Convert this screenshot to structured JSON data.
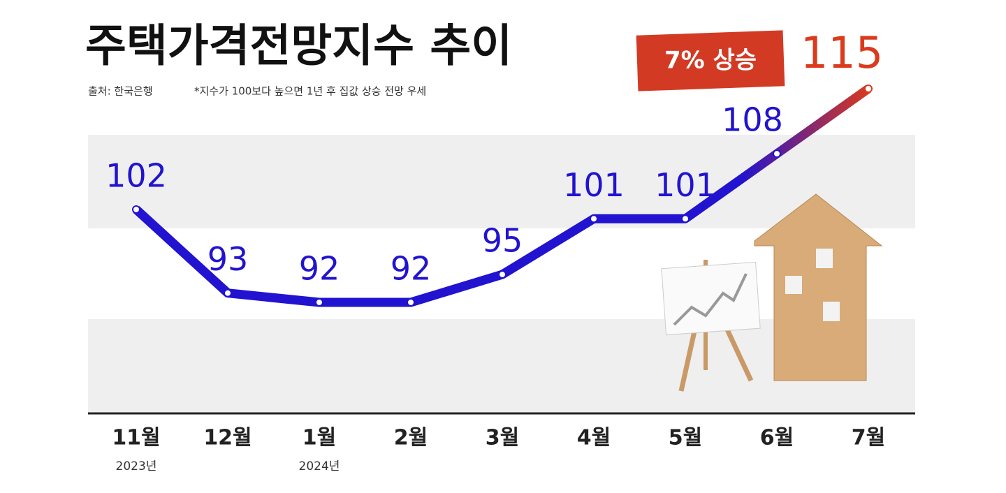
{
  "chart_data": {
    "type": "line",
    "title": "주택가격전망지수 추이",
    "source": "출처: 한국은행",
    "note": "*지수가 100보다 높으면 1년 후 집값 상승 전망 우세",
    "badge": "7% 상승",
    "categories": [
      "11월",
      "12월",
      "1월",
      "2월",
      "3월",
      "4월",
      "5월",
      "6월",
      "7월"
    ],
    "category_sublabels": [
      "2023년",
      null,
      "2024년",
      null,
      null,
      null,
      null,
      null,
      null
    ],
    "values": [
      102,
      93,
      92,
      92,
      95,
      101,
      101,
      108,
      115
    ],
    "color": "#2113cf",
    "highlight_color": "#db3a1d"
  }
}
